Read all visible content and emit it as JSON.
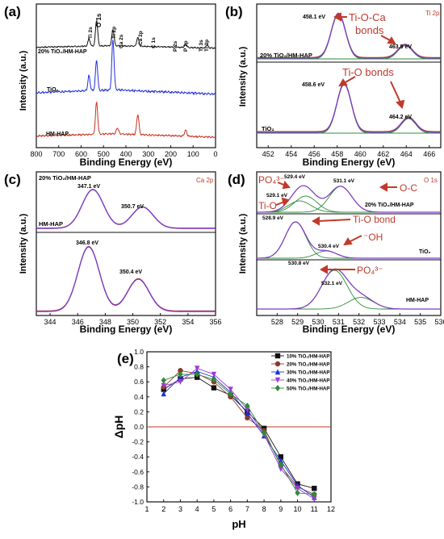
{
  "colors": {
    "black": "#111111",
    "blue": "#1f2fd6",
    "red": "#c8321e",
    "magenta": "#b23ad6",
    "purple_env": "#7a3cc4",
    "green": "#2e8b3a",
    "arrow": "#c0392b",
    "label_red": "#c0392b",
    "line_red": "#d94a3a"
  },
  "chart_data": [
    {
      "panel": "(a)",
      "type": "line",
      "xlabel": "Binding Energy (eV)",
      "ylabel": "Intensity (a.u.)",
      "xlim": [
        800,
        0
      ],
      "xticks": [
        "800",
        "700",
        "600",
        "500",
        "400",
        "300",
        "200",
        "100",
        "0"
      ],
      "series": [
        {
          "name": "20% TiO2/HM-HAP",
          "color": "black",
          "peaks": [
            [
              565,
              0.25
            ],
            [
              531,
              0.9
            ],
            [
              458,
              0.55
            ],
            [
              347,
              0.3
            ],
            [
              133,
              0.1
            ],
            [
              38,
              0.1
            ]
          ]
        },
        {
          "name": "TiO2",
          "color": "blue",
          "peaks": [
            [
              565,
              0.3
            ],
            [
              531,
              0.6
            ],
            [
              458,
              1.0
            ]
          ]
        },
        {
          "name": "HM-HAP",
          "color": "red",
          "peaks": [
            [
              531,
              0.8
            ],
            [
              438,
              0.15
            ],
            [
              347,
              0.5
            ],
            [
              133,
              0.15
            ]
          ]
        }
      ],
      "peak_labels": [
        "Ti 2s",
        "O 1s",
        "Ti 2p",
        "Ca 2s",
        "Ca 2p",
        "C 1s",
        "P 2s",
        "P 2p",
        "Ti 3s",
        "Ti 3p"
      ],
      "curve_labels": [
        "20% TiO₂/HM-HAP",
        "TiO₂",
        "HM-HAP"
      ]
    },
    {
      "panel": "(b)",
      "type": "line",
      "title": "Ti 2p",
      "xlabel": "Binding Energy (eV)",
      "ylabel": "Intensity (a.u.)",
      "xlim": [
        451,
        467
      ],
      "xticks": [
        "452",
        "454",
        "456",
        "458",
        "460",
        "462",
        "464",
        "466"
      ],
      "series": [
        {
          "name": "20% TiO2/HM-HAP",
          "peaks": [
            [
              458.1,
              1.0
            ],
            [
              463.9,
              0.3
            ]
          ]
        },
        {
          "name": "TiO2",
          "peaks": [
            [
              458.6,
              1.0
            ],
            [
              464.2,
              0.3
            ]
          ]
        }
      ],
      "annotations": [
        "458.1 eV",
        "463.9 eV",
        "458.6 eV",
        "464.2 eV",
        "Ti-O-Ca",
        "bonds",
        "Ti-O bonds"
      ],
      "curve_labels": [
        "20% TiO₂/HM-HAP",
        "TiO₂"
      ]
    },
    {
      "panel": "(c)",
      "type": "line",
      "title": "Ca 2p",
      "xlabel": "Binding Energy (eV)",
      "ylabel": "Intensity (a.u.)",
      "xlim": [
        343,
        356
      ],
      "xticks": [
        "344",
        "346",
        "348",
        "350",
        "352",
        "354",
        "356"
      ],
      "series": [
        {
          "name": "20% TiO2/HM-HAP",
          "peaks": [
            [
              347.1,
              1.0
            ],
            [
              350.7,
              0.55
            ]
          ]
        },
        {
          "name": "HM-HAP",
          "peaks": [
            [
              346.8,
              1.0
            ],
            [
              350.4,
              0.5
            ]
          ]
        }
      ],
      "annotations": [
        "347.1 eV",
        "350.7 eV",
        "346.8 eV",
        "350.4 eV"
      ],
      "curve_labels": [
        "20% TiO₂/HM-HAP",
        "HM-HAP"
      ]
    },
    {
      "panel": "(d)",
      "type": "line",
      "title": "O 1s",
      "xlabel": "Binding Energy (eV)",
      "ylabel": "Intensity (a.u.)",
      "xlim": [
        527,
        536
      ],
      "xticks": [
        "528",
        "529",
        "530",
        "531",
        "532",
        "533",
        "534",
        "535",
        "536"
      ],
      "series": [
        {
          "name": "20% TiO2/HM-HAP",
          "peaks": [
            [
              529.1,
              0.35
            ],
            [
              529.4,
              0.5
            ],
            [
              531.1,
              0.8
            ]
          ]
        },
        {
          "name": "TiO2",
          "peaks": [
            [
              528.9,
              1.0
            ],
            [
              530.4,
              0.2
            ]
          ]
        },
        {
          "name": "HM-HAP",
          "peaks": [
            [
              530.8,
              1.0
            ],
            [
              532.1,
              0.3
            ]
          ]
        }
      ],
      "annotations": [
        "529.4 eV",
        "531.1 eV",
        "529.1 eV",
        "528.9 eV",
        "530.4 eV",
        "530.8 eV",
        "532.1 eV",
        "PO₄³⁻",
        "O-C",
        "Ti-O",
        "Ti-O bond",
        "⁻OH",
        "PO₄³⁻"
      ],
      "curve_labels": [
        "20% TiO₂/HM-HAP",
        "TiO₂",
        "HM-HAP"
      ]
    },
    {
      "panel": "(e)",
      "type": "line",
      "xlabel": "pH",
      "ylabel": "ΔpH",
      "xlim": [
        1,
        12
      ],
      "ylim": [
        -1.0,
        1.0
      ],
      "xticks": [
        "1",
        "2",
        "3",
        "4",
        "5",
        "6",
        "7",
        "8",
        "9",
        "10",
        "11",
        "12"
      ],
      "yticks": [
        "1.0",
        "0.8",
        "0.6",
        "0.4",
        "0.2",
        "0.0",
        "-0.2",
        "-0.4",
        "-0.6",
        "-0.8",
        "-1.0"
      ],
      "x": [
        2,
        3,
        4,
        5,
        6,
        7,
        8,
        9,
        10,
        11
      ],
      "legend_position": "top-right",
      "series": [
        {
          "name": "10% TiO₂/HM-HAP",
          "color": "#111111",
          "marker": "square",
          "values": [
            0.5,
            0.64,
            0.66,
            0.52,
            0.42,
            0.2,
            -0.02,
            -0.4,
            -0.76,
            -0.82
          ]
        },
        {
          "name": "20% TiO₂/HM-HAP",
          "color": "#8b3a2a",
          "marker": "circle",
          "values": [
            0.53,
            0.75,
            0.71,
            0.6,
            0.4,
            0.12,
            -0.05,
            -0.52,
            -0.8,
            -0.9
          ]
        },
        {
          "name": "30% TiO₂/HM-HAP",
          "color": "#1f2fd6",
          "marker": "triangle",
          "values": [
            0.44,
            0.66,
            0.74,
            0.66,
            0.46,
            0.18,
            -0.12,
            -0.45,
            -0.78,
            -0.94
          ]
        },
        {
          "name": "40% TiO₂/HM-HAP",
          "color": "#9b3cd6",
          "marker": "tri-down",
          "values": [
            0.55,
            0.6,
            0.78,
            0.7,
            0.5,
            0.23,
            -0.1,
            -0.56,
            -0.82,
            -0.96
          ]
        },
        {
          "name": "50% TiO₂/HM-HAP",
          "color": "#2e8b3a",
          "marker": "diamond",
          "values": [
            0.62,
            0.7,
            0.7,
            0.63,
            0.44,
            0.28,
            -0.08,
            -0.5,
            -0.88,
            -0.9
          ]
        }
      ],
      "reference_line": {
        "y": 0.0,
        "color": "#c0392b"
      }
    }
  ]
}
